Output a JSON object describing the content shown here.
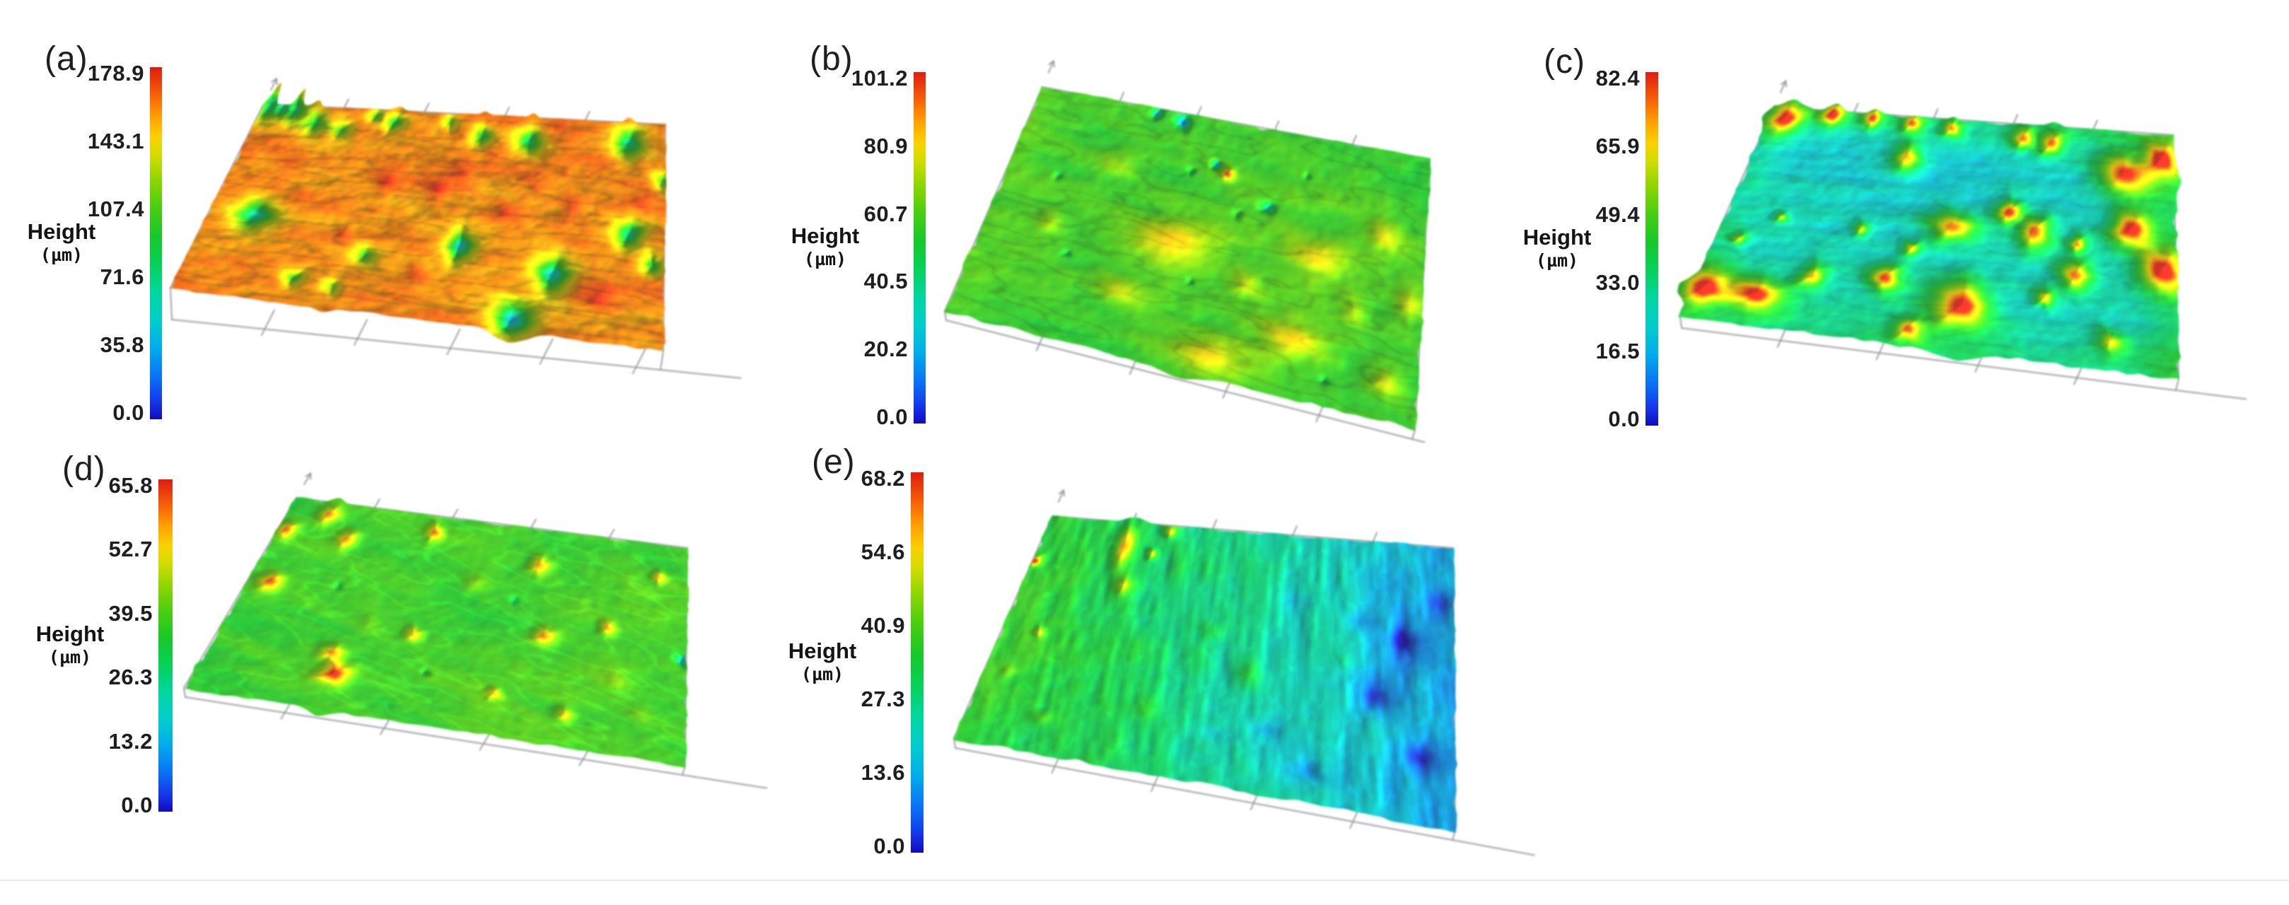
{
  "figure": {
    "background": "#ffffff",
    "description": "Five 3D optical-profilometry surface height maps labelled (a)-(e), each with a rainbow height colorbar in micrometres",
    "axis_label": {
      "line1": "Height",
      "line2": "(µm)"
    },
    "panels": [
      {
        "id": "a",
        "label": "(a)",
        "colorbar_ticks": [
          "178.9",
          "143.1",
          "107.4",
          "71.6",
          "35.8",
          "0.0"
        ]
      },
      {
        "id": "b",
        "label": "(b)",
        "colorbar_ticks": [
          "101.2",
          "80.9",
          "60.7",
          "40.5",
          "20.2",
          "0.0"
        ]
      },
      {
        "id": "c",
        "label": "(c)",
        "colorbar_ticks": [
          "82.4",
          "65.9",
          "49.4",
          "33.0",
          "16.5",
          "0.0"
        ]
      },
      {
        "id": "d",
        "label": "(d)",
        "colorbar_ticks": [
          "65.8",
          "52.7",
          "39.5",
          "26.3",
          "13.2",
          "0.0"
        ]
      },
      {
        "id": "e",
        "label": "(e)",
        "colorbar_ticks": [
          "68.2",
          "54.6",
          "40.9",
          "27.3",
          "13.6",
          "0.0"
        ]
      }
    ],
    "colormap_stops": [
      [
        0.0,
        18,
        10,
        190
      ],
      [
        0.05,
        20,
        55,
        235
      ],
      [
        0.12,
        10,
        115,
        245
      ],
      [
        0.2,
        0,
        172,
        235
      ],
      [
        0.28,
        0,
        205,
        203
      ],
      [
        0.36,
        0,
        214,
        158
      ],
      [
        0.44,
        6,
        210,
        88
      ],
      [
        0.52,
        22,
        200,
        40
      ],
      [
        0.6,
        72,
        206,
        16
      ],
      [
        0.68,
        142,
        214,
        0
      ],
      [
        0.75,
        212,
        220,
        0
      ],
      [
        0.8,
        250,
        210,
        0
      ],
      [
        0.86,
        255,
        160,
        0
      ],
      [
        0.92,
        248,
        98,
        6
      ],
      [
        1.0,
        222,
        28,
        16
      ]
    ]
  },
  "chart_data": [
    {
      "type": "heatmap",
      "panel": "(a)",
      "title": "3D surface height map (a)",
      "zlabel": "Height (µm)",
      "zlim": [
        0.0,
        178.9
      ],
      "colorbar_ticks": [
        178.9,
        143.1,
        107.4,
        71.6,
        35.8,
        0.0
      ],
      "mean_height_um": 150,
      "surface": "orange/red plateau with scattered green-cyan pits and small red mounds"
    },
    {
      "type": "heatmap",
      "panel": "(b)",
      "title": "3D surface height map (b)",
      "zlabel": "Height (µm)",
      "zlim": [
        0.0,
        101.2
      ],
      "colorbar_ticks": [
        101.2,
        80.9,
        60.7,
        40.5,
        20.2,
        0.0
      ],
      "mean_height_um": 58,
      "surface": "green surface with tan-orange smears, one red peak and small blue pits near the top"
    },
    {
      "type": "heatmap",
      "panel": "(c)",
      "title": "3D surface height map (c)",
      "zlabel": "Height (µm)",
      "zlim": [
        0.0,
        82.4
      ],
      "colorbar_ticks": [
        82.4,
        65.9,
        49.4,
        33.0,
        16.5,
        0.0
      ],
      "mean_height_um": 30,
      "surface": "cyan-blue streaked surface covered by many red mounds with yellow-green rims"
    },
    {
      "type": "heatmap",
      "panel": "(d)",
      "title": "3D surface height map (d)",
      "zlabel": "Height (µm)",
      "zlim": [
        0.0,
        65.8
      ],
      "colorbar_ticks": [
        65.8,
        52.7,
        39.5,
        26.3,
        13.2,
        0.0
      ],
      "mean_height_um": 37,
      "surface": "green surface with diagonal scratches and orange-red spots"
    },
    {
      "type": "heatmap",
      "panel": "(e)",
      "title": "3D surface height map (e)",
      "zlabel": "Height (µm)",
      "zlim": [
        0.0,
        68.2
      ],
      "colorbar_ticks": [
        68.2,
        54.6,
        40.9,
        27.3,
        13.6,
        0.0
      ],
      "mean_height_um": 25,
      "surface": "vertically striated surface grading from green (left) to cyan and blue-violet (right)"
    }
  ]
}
